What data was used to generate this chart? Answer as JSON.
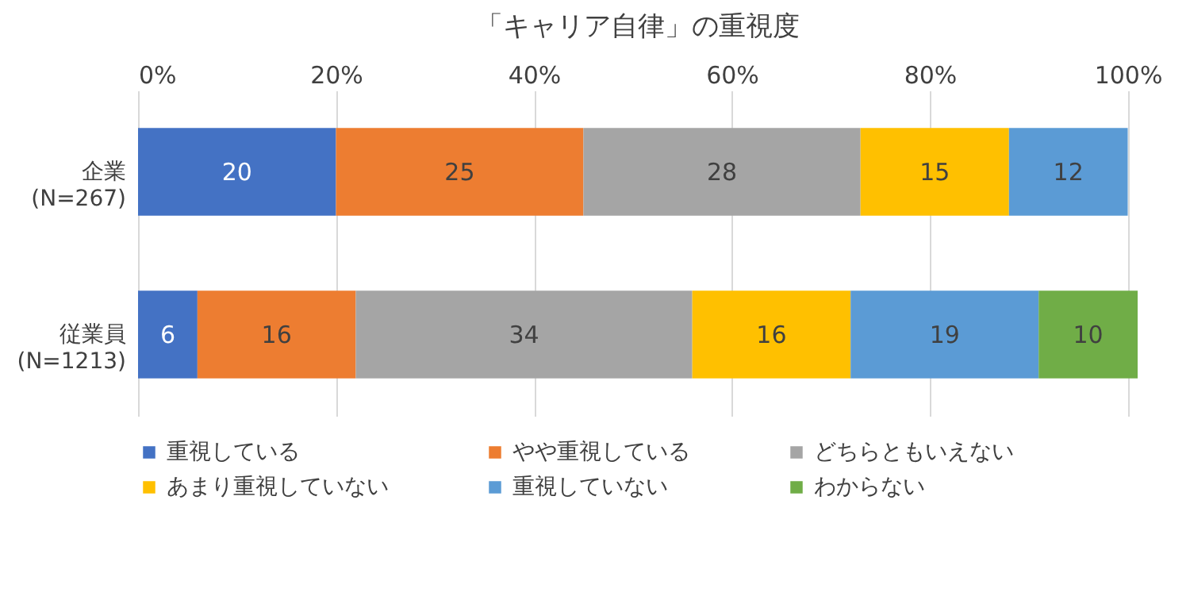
{
  "chart_data": {
    "type": "bar",
    "orientation": "horizontal",
    "stacked": true,
    "title": "「キャリア自律」の重視度",
    "categories": [
      "企業\n(N=267)",
      "従業員\n(N=1213)"
    ],
    "series": [
      {
        "name": "重視している",
        "color": "#4472c4",
        "values": [
          20,
          6
        ]
      },
      {
        "name": "やや重視している",
        "color": "#ed7d31",
        "values": [
          25,
          16
        ]
      },
      {
        "name": "どちらともいえない",
        "color": "#a5a5a5",
        "values": [
          28,
          34
        ]
      },
      {
        "name": "あまり重視していない",
        "color": "#ffc000",
        "values": [
          15,
          16
        ]
      },
      {
        "name": "重視していない",
        "color": "#5b9bd5",
        "values": [
          12,
          19
        ]
      },
      {
        "name": "わからない",
        "color": "#70ad47",
        "values": [
          null,
          10
        ]
      }
    ],
    "xlim": [
      0,
      101
    ],
    "xticks": [
      {
        "value": 0,
        "label": "0%"
      },
      {
        "value": 20,
        "label": "20%"
      },
      {
        "value": 40,
        "label": "40%"
      },
      {
        "value": 60,
        "label": "60%"
      },
      {
        "value": 80,
        "label": "80%"
      },
      {
        "value": 100,
        "label": "100%"
      }
    ],
    "grid": "x",
    "legend": "bottom",
    "data_labels": true
  }
}
